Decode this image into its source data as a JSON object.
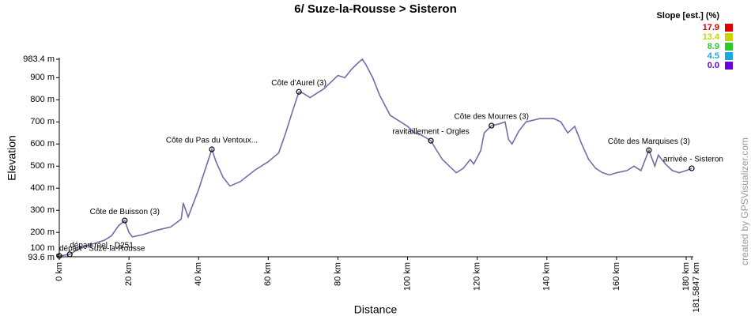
{
  "chart_data": {
    "type": "line",
    "title": "6/ Suze-la-Rousse > Sisteron",
    "x_label": "Distance",
    "y_label": "Elevation",
    "watermark": "created by GPSVisualizer.com",
    "xlim": [
      0,
      181.5847
    ],
    "ylim": [
      93.6,
      983.4
    ],
    "xticks": [
      {
        "value": 0,
        "label": "0 km"
      },
      {
        "value": 20,
        "label": "20 km"
      },
      {
        "value": 40,
        "label": "40 km"
      },
      {
        "value": 60,
        "label": "60 km"
      },
      {
        "value": 80,
        "label": "80 km"
      },
      {
        "value": 100,
        "label": "100 km"
      },
      {
        "value": 120,
        "label": "120 km"
      },
      {
        "value": 140,
        "label": "140 km"
      },
      {
        "value": 160,
        "label": "160 km"
      },
      {
        "value": 180,
        "label": "180 km"
      },
      {
        "value": 181.5847,
        "label": "181.5847 km"
      }
    ],
    "yticks": [
      {
        "value": 93.6,
        "label": "93.6 m"
      },
      {
        "value": 100,
        "label": "100 m"
      },
      {
        "value": 200,
        "label": "200 m"
      },
      {
        "value": 300,
        "label": "300 m"
      },
      {
        "value": 400,
        "label": "400 m"
      },
      {
        "value": 500,
        "label": "500 m"
      },
      {
        "value": 600,
        "label": "600 m"
      },
      {
        "value": 700,
        "label": "700 m"
      },
      {
        "value": 800,
        "label": "800 m"
      },
      {
        "value": 900,
        "label": "900 m"
      },
      {
        "value": 983.4,
        "label": "983.4 m"
      }
    ],
    "grid": false,
    "series": [
      {
        "name": "Elevation",
        "color": "#6e6ea8",
        "x": [
          0,
          3,
          5,
          8,
          10,
          13,
          15,
          17,
          18.8,
          20,
          21,
          24,
          28,
          32,
          35,
          35.6,
          37,
          40,
          43.8,
          45,
          47,
          49,
          52,
          56,
          60,
          63,
          65,
          67,
          68.8,
          70,
          72,
          74,
          76,
          78,
          80,
          82,
          84,
          86,
          87,
          88,
          90,
          92,
          95,
          98,
          100,
          102,
          104,
          106.7,
          108,
          110,
          112,
          114,
          116,
          118,
          119,
          121,
          122,
          124.1,
          126,
          128,
          129,
          130,
          132,
          134,
          138,
          142,
          144,
          146,
          148,
          150,
          152,
          154,
          156,
          158,
          160,
          163,
          165,
          167,
          169.3,
          171,
          172,
          174,
          176,
          178,
          180,
          181.5847
        ],
        "values": [
          93.6,
          101,
          120,
          140,
          150,
          165,
          185,
          230,
          254,
          200,
          180,
          190,
          210,
          225,
          260,
          333,
          270,
          394,
          576,
          520,
          450,
          410,
          430,
          480,
          520,
          560,
          650,
          750,
          836,
          830,
          810,
          830,
          850,
          880,
          910,
          900,
          940,
          970,
          983.4,
          960,
          900,
          820,
          730,
          700,
          680,
          650,
          640,
          615,
          580,
          530,
          500,
          470,
          490,
          530,
          510,
          570,
          650,
          683,
          690,
          700,
          620,
          600,
          660,
          700,
          715,
          715,
          700,
          650,
          680,
          600,
          530,
          490,
          470,
          460,
          470,
          480,
          500,
          480,
          572,
          500,
          550,
          510,
          480,
          470,
          480,
          490
        ]
      }
    ],
    "waypoints": [
      {
        "label": "départ réel - D251",
        "x": 3,
        "y": 101
      },
      {
        "label": "départ - Suze-la-Rousse",
        "x": 0,
        "y": 93.6
      },
      {
        "label": "Côte de Buisson (3)",
        "x": 18.8,
        "y": 254
      },
      {
        "label": "Côte du Pas du Ventoux...",
        "x": 43.8,
        "y": 576
      },
      {
        "label": "Côte d'Aurel (3)",
        "x": 68.8,
        "y": 836
      },
      {
        "label": "ravitaillement - Orgles",
        "x": 106.7,
        "y": 615
      },
      {
        "label": "Côte des Mourres (3)",
        "x": 124.1,
        "y": 683
      },
      {
        "label": "Côte des Marquises (3)",
        "x": 169.3,
        "y": 572
      },
      {
        "label": "arrivée - Sisteron",
        "x": 181.5847,
        "y": 490
      }
    ],
    "slope_legend": {
      "title": "Slope [est.] (%)",
      "values": [
        17.9,
        13.4,
        8.9,
        4.5,
        0
      ],
      "value_labels": [
        "17.9",
        "13.4",
        "8.9",
        "4.5",
        "0.0"
      ],
      "colors": [
        "#e00000",
        "#c8d400",
        "#2cc82c",
        "#19a8e0",
        "#6a00e0"
      ]
    }
  }
}
